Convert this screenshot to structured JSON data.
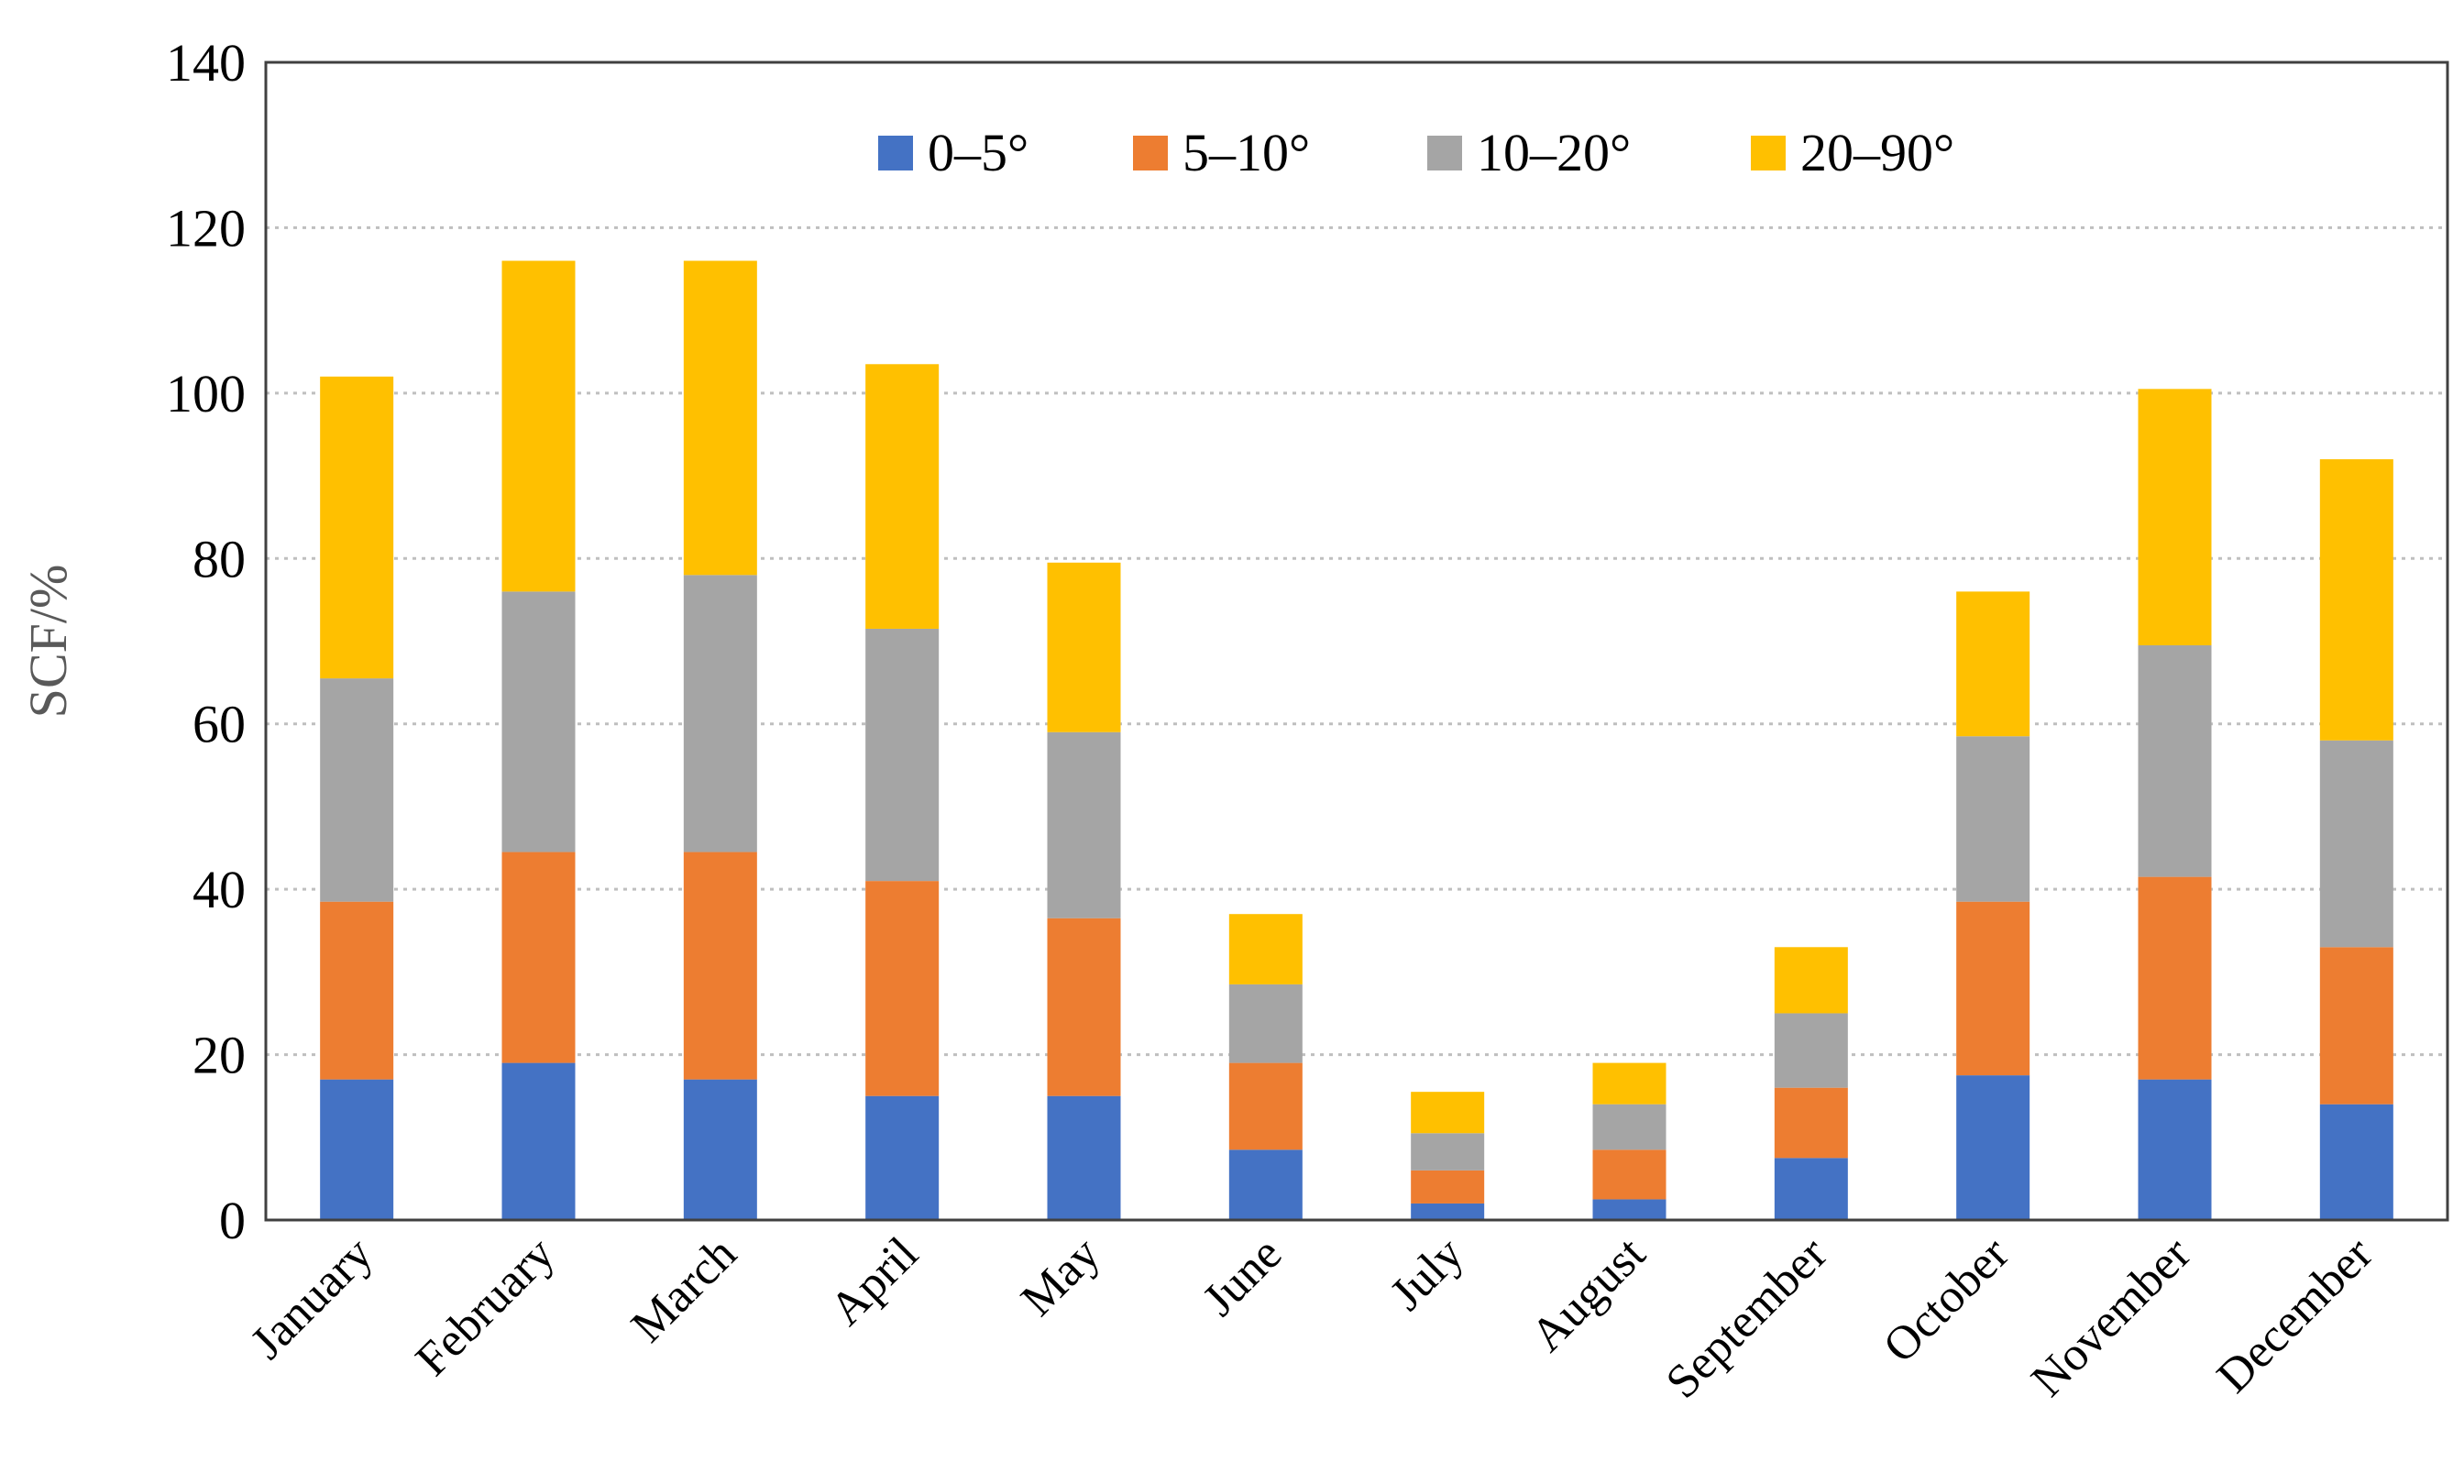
{
  "chart_data": {
    "type": "bar",
    "stacked": true,
    "title": "",
    "xlabel": "",
    "ylabel": "SCF/%",
    "ylim": [
      0,
      140
    ],
    "yticks": [
      0,
      20,
      40,
      60,
      80,
      100,
      120,
      140
    ],
    "grid": "horizontal dotted",
    "legend_position": "top-center",
    "categories": [
      "January",
      "February",
      "March",
      "April",
      "May",
      "June",
      "July",
      "August",
      "September",
      "October",
      "November",
      "December"
    ],
    "series": [
      {
        "name": "0–5°",
        "color": "#4472c4",
        "values": [
          17,
          19,
          17,
          15,
          15,
          8.5,
          2,
          2.5,
          7.5,
          17.5,
          17,
          14
        ]
      },
      {
        "name": "5–10°",
        "color": "#ed7d31",
        "values": [
          21.5,
          25.5,
          27.5,
          26,
          21.5,
          10.5,
          4,
          6,
          8.5,
          21,
          24.5,
          19
        ]
      },
      {
        "name": "10–20°",
        "color": "#a5a5a5",
        "values": [
          27,
          31.5,
          33.5,
          30.5,
          22.5,
          9.5,
          4.5,
          5.5,
          9,
          20,
          28,
          25
        ]
      },
      {
        "name": "20–90°",
        "color": "#ffc000",
        "values": [
          36.5,
          40,
          38,
          32,
          20.5,
          8.5,
          5,
          5,
          8,
          17.5,
          31,
          34
        ]
      }
    ]
  }
}
